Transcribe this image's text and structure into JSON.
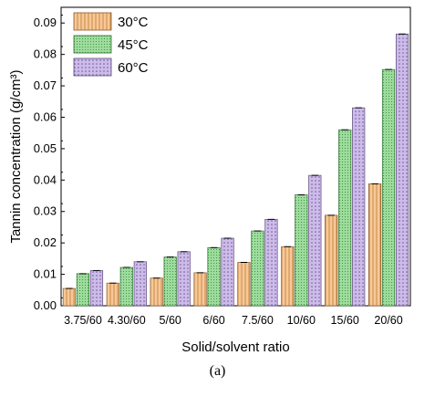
{
  "chart_data": {
    "type": "bar",
    "xlabel": "Solid/solvent ratio",
    "ylabel": "Tannin concentration (g/cm³)",
    "ylim": [
      0,
      0.095
    ],
    "yticks": [
      "0.00",
      "0.01",
      "0.02",
      "0.03",
      "0.04",
      "0.05",
      "0.06",
      "0.07",
      "0.08",
      "0.09"
    ],
    "categories": [
      "3.75/60",
      "4.30/60",
      "5/60",
      "6/60",
      "7.5/60",
      "10/60",
      "15/60",
      "20/60"
    ],
    "series": [
      {
        "name": "30°C",
        "color": "#f5c08f",
        "pattern": "vertical-stripes",
        "values": [
          0.0055,
          0.0072,
          0.0088,
          0.0105,
          0.0138,
          0.0188,
          0.0288,
          0.0388
        ]
      },
      {
        "name": "45°C",
        "color": "#8fd48f",
        "pattern": "grid-squares",
        "values": [
          0.0102,
          0.0122,
          0.0155,
          0.0185,
          0.0238,
          0.0353,
          0.056,
          0.0752
        ]
      },
      {
        "name": "60°C",
        "color": "#c7b3e6",
        "pattern": "dots",
        "values": [
          0.0112,
          0.014,
          0.0172,
          0.0215,
          0.0275,
          0.0415,
          0.063,
          0.0865
        ]
      }
    ],
    "legend_position": "top-left"
  },
  "caption": "(a)"
}
